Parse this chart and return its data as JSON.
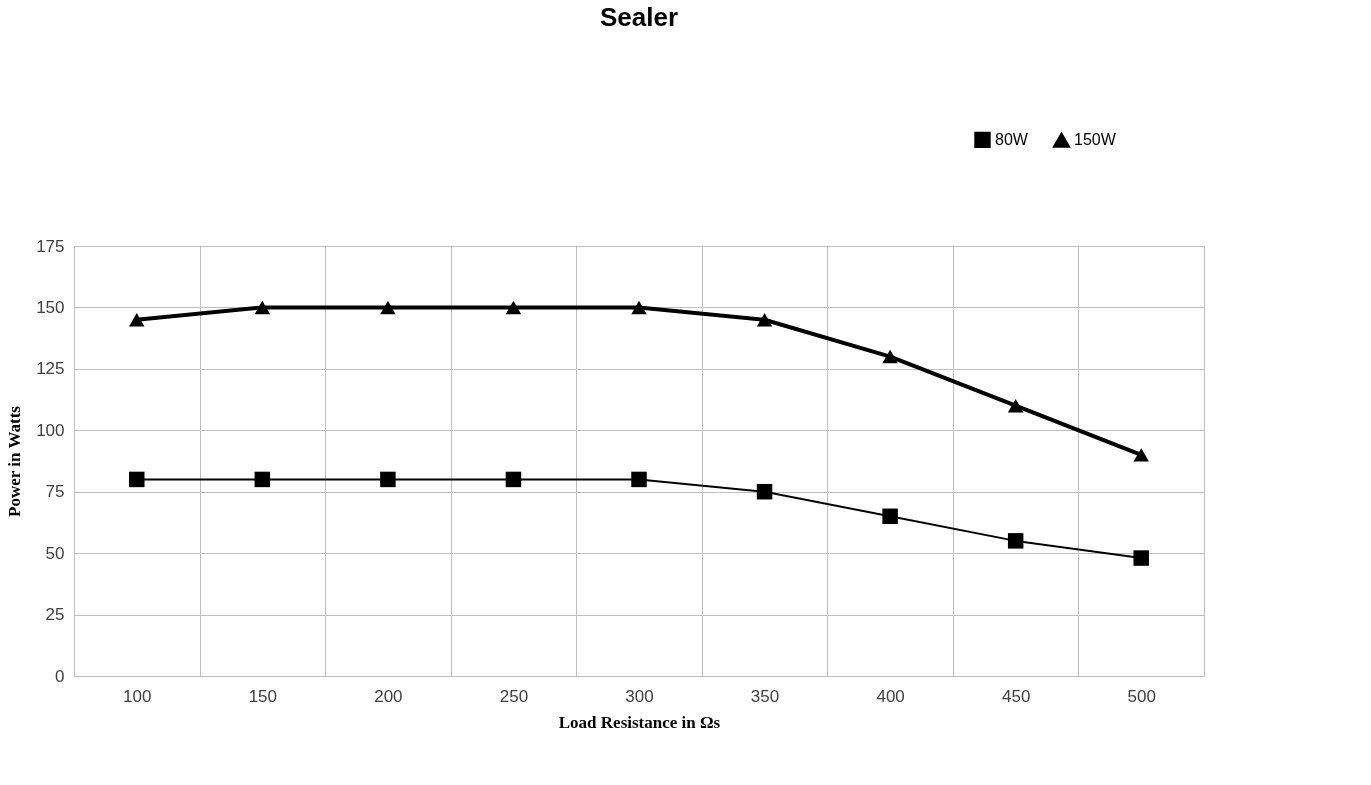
{
  "chart_data": {
    "type": "line",
    "title": "Sealer",
    "xlabel": "Load Resistance in Ωs",
    "ylabel": "Power in Watts",
    "categories": [
      "100",
      "150",
      "200",
      "250",
      "300",
      "350",
      "400",
      "450",
      "500"
    ],
    "series": [
      {
        "name": "80W",
        "color": "#000000",
        "marker": "square",
        "values": [
          80,
          80,
          80,
          80,
          80,
          75,
          65,
          55,
          48
        ]
      },
      {
        "name": "150W",
        "color": "#000000",
        "marker": "triangle",
        "values": [
          145,
          150,
          150,
          150,
          150,
          145,
          130,
          110,
          90
        ]
      }
    ],
    "ylim": [
      0,
      175
    ],
    "yticks": [
      0,
      25,
      50,
      75,
      100,
      125,
      150,
      175
    ],
    "grid": true,
    "legend": "top right",
    "line_style": "solid"
  }
}
